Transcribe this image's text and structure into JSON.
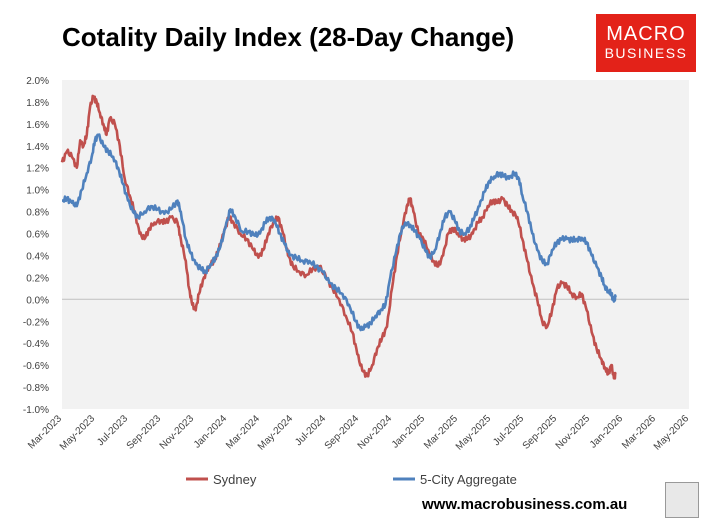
{
  "title": "Cotality Daily Index (28-Day Change)",
  "logo": {
    "line1": "MACRO",
    "line2": "BUSINESS",
    "color": "#e32219"
  },
  "footer": "www.macrobusiness.com.au",
  "colors": {
    "sydney": "#c0504d",
    "aggregate": "#4f81bd",
    "plot_bg": "#f2f2f2"
  },
  "chart_data": {
    "type": "line",
    "title": "Cotality Daily Index (28-Day Change)",
    "x_labels": [
      "Mar-2023",
      "May-2023",
      "Jul-2023",
      "Sep-2023",
      "Nov-2023",
      "Jan-2024",
      "Mar-2024",
      "May-2024",
      "Jul-2024",
      "Sep-2024",
      "Nov-2024",
      "Jan-2025",
      "Mar-2025",
      "May-2025",
      "Jul-2025",
      "Sep-2025",
      "Nov-2025",
      "Jan-2026",
      "Mar-2026",
      "May-2026"
    ],
    "y_ticks": [
      "2.0%",
      "1.8%",
      "1.6%",
      "1.4%",
      "1.2%",
      "1.0%",
      "0.8%",
      "0.6%",
      "0.4%",
      "0.2%",
      "0.0%",
      "-0.2%",
      "-0.4%",
      "-0.6%",
      "-0.8%",
      "-1.0%"
    ],
    "ylim": [
      -1.0,
      2.0
    ],
    "x_unit": "months since Mar-2023",
    "legend_position": "bottom",
    "series": [
      {
        "name": "Sydney",
        "values": [
          [
            0,
            1.25
          ],
          [
            0.3,
            1.35
          ],
          [
            0.6,
            1.3
          ],
          [
            0.9,
            1.2
          ],
          [
            1.1,
            1.45
          ],
          [
            1.3,
            1.4
          ],
          [
            1.5,
            1.5
          ],
          [
            1.7,
            1.75
          ],
          [
            1.9,
            1.85
          ],
          [
            2.1,
            1.8
          ],
          [
            2.3,
            1.7
          ],
          [
            2.5,
            1.6
          ],
          [
            2.7,
            1.5
          ],
          [
            2.9,
            1.65
          ],
          [
            3.2,
            1.6
          ],
          [
            3.5,
            1.4
          ],
          [
            3.8,
            1.1
          ],
          [
            4.1,
            0.95
          ],
          [
            4.4,
            0.8
          ],
          [
            4.7,
            0.6
          ],
          [
            5.0,
            0.55
          ],
          [
            5.3,
            0.65
          ],
          [
            5.6,
            0.7
          ],
          [
            6.0,
            0.72
          ],
          [
            6.3,
            0.7
          ],
          [
            6.6,
            0.75
          ],
          [
            7.0,
            0.7
          ],
          [
            7.2,
            0.55
          ],
          [
            7.5,
            0.35
          ],
          [
            7.7,
            0.1
          ],
          [
            7.9,
            -0.05
          ],
          [
            8.1,
            -0.1
          ],
          [
            8.3,
            0.05
          ],
          [
            8.6,
            0.2
          ],
          [
            8.9,
            0.3
          ],
          [
            9.2,
            0.35
          ],
          [
            9.5,
            0.45
          ],
          [
            9.8,
            0.6
          ],
          [
            10.1,
            0.75
          ],
          [
            10.4,
            0.7
          ],
          [
            10.8,
            0.6
          ],
          [
            11.2,
            0.55
          ],
          [
            11.6,
            0.45
          ],
          [
            11.9,
            0.38
          ],
          [
            12.2,
            0.45
          ],
          [
            12.5,
            0.6
          ],
          [
            12.8,
            0.7
          ],
          [
            13.1,
            0.75
          ],
          [
            13.4,
            0.6
          ],
          [
            13.7,
            0.4
          ],
          [
            14.0,
            0.3
          ],
          [
            14.4,
            0.25
          ],
          [
            14.8,
            0.22
          ],
          [
            15.2,
            0.28
          ],
          [
            15.6,
            0.3
          ],
          [
            16.0,
            0.2
          ],
          [
            16.4,
            0.1
          ],
          [
            16.8,
            0.0
          ],
          [
            17.2,
            -0.15
          ],
          [
            17.6,
            -0.3
          ],
          [
            17.9,
            -0.5
          ],
          [
            18.2,
            -0.65
          ],
          [
            18.5,
            -0.7
          ],
          [
            18.8,
            -0.6
          ],
          [
            19.1,
            -0.45
          ],
          [
            19.4,
            -0.35
          ],
          [
            19.7,
            -0.25
          ],
          [
            20.0,
            0.1
          ],
          [
            20.3,
            0.4
          ],
          [
            20.6,
            0.65
          ],
          [
            20.9,
            0.85
          ],
          [
            21.1,
            0.92
          ],
          [
            21.3,
            0.8
          ],
          [
            21.6,
            0.6
          ],
          [
            21.9,
            0.55
          ],
          [
            22.2,
            0.45
          ],
          [
            22.5,
            0.35
          ],
          [
            22.8,
            0.3
          ],
          [
            23.1,
            0.4
          ],
          [
            23.4,
            0.6
          ],
          [
            23.7,
            0.65
          ],
          [
            24.0,
            0.6
          ],
          [
            24.3,
            0.55
          ],
          [
            24.6,
            0.55
          ],
          [
            24.9,
            0.6
          ],
          [
            25.2,
            0.7
          ],
          [
            25.5,
            0.75
          ],
          [
            25.8,
            0.85
          ],
          [
            26.1,
            0.9
          ],
          [
            26.4,
            0.88
          ],
          [
            26.7,
            0.92
          ],
          [
            27.0,
            0.85
          ],
          [
            27.3,
            0.8
          ],
          [
            27.6,
            0.75
          ],
          [
            27.9,
            0.55
          ],
          [
            28.2,
            0.35
          ],
          [
            28.5,
            0.15
          ],
          [
            28.8,
            0.0
          ],
          [
            29.1,
            -0.2
          ],
          [
            29.4,
            -0.25
          ],
          [
            29.7,
            -0.1
          ],
          [
            30.0,
            0.1
          ],
          [
            30.3,
            0.15
          ],
          [
            30.6,
            0.12
          ],
          [
            30.9,
            0.05
          ],
          [
            31.2,
            0.02
          ],
          [
            31.5,
            0.05
          ],
          [
            31.8,
            -0.1
          ],
          [
            32.1,
            -0.3
          ],
          [
            32.4,
            -0.45
          ],
          [
            32.7,
            -0.55
          ],
          [
            32.9,
            -0.62
          ],
          [
            33.1,
            -0.68
          ],
          [
            33.3,
            -0.6
          ],
          [
            33.45,
            -0.72
          ],
          [
            33.55,
            -0.68
          ]
        ]
      },
      {
        "name": "5-City Aggregate",
        "values": [
          [
            0,
            0.9
          ],
          [
            0.3,
            0.92
          ],
          [
            0.6,
            0.88
          ],
          [
            0.9,
            0.85
          ],
          [
            1.2,
            1.0
          ],
          [
            1.5,
            1.15
          ],
          [
            1.8,
            1.3
          ],
          [
            2.0,
            1.45
          ],
          [
            2.2,
            1.5
          ],
          [
            2.5,
            1.4
          ],
          [
            2.8,
            1.35
          ],
          [
            3.1,
            1.3
          ],
          [
            3.4,
            1.2
          ],
          [
            3.7,
            1.05
          ],
          [
            4.0,
            0.9
          ],
          [
            4.3,
            0.8
          ],
          [
            4.6,
            0.75
          ],
          [
            5.0,
            0.8
          ],
          [
            5.4,
            0.85
          ],
          [
            5.8,
            0.82
          ],
          [
            6.2,
            0.78
          ],
          [
            6.6,
            0.82
          ],
          [
            7.0,
            0.9
          ],
          [
            7.2,
            0.8
          ],
          [
            7.5,
            0.55
          ],
          [
            7.8,
            0.42
          ],
          [
            8.1,
            0.32
          ],
          [
            8.4,
            0.28
          ],
          [
            8.7,
            0.25
          ],
          [
            9.0,
            0.32
          ],
          [
            9.3,
            0.38
          ],
          [
            9.6,
            0.48
          ],
          [
            9.9,
            0.65
          ],
          [
            10.2,
            0.82
          ],
          [
            10.5,
            0.75
          ],
          [
            10.9,
            0.62
          ],
          [
            11.3,
            0.62
          ],
          [
            11.7,
            0.58
          ],
          [
            12.0,
            0.6
          ],
          [
            12.3,
            0.7
          ],
          [
            12.6,
            0.75
          ],
          [
            12.9,
            0.72
          ],
          [
            13.2,
            0.6
          ],
          [
            13.5,
            0.5
          ],
          [
            13.8,
            0.4
          ],
          [
            14.2,
            0.38
          ],
          [
            14.6,
            0.35
          ],
          [
            15.0,
            0.35
          ],
          [
            15.4,
            0.3
          ],
          [
            15.8,
            0.25
          ],
          [
            16.2,
            0.15
          ],
          [
            16.6,
            0.1
          ],
          [
            17.0,
            0.05
          ],
          [
            17.4,
            -0.05
          ],
          [
            17.8,
            -0.2
          ],
          [
            18.1,
            -0.28
          ],
          [
            18.4,
            -0.25
          ],
          [
            18.7,
            -0.22
          ],
          [
            19.0,
            -0.15
          ],
          [
            19.3,
            -0.1
          ],
          [
            19.6,
            -0.05
          ],
          [
            19.9,
            0.2
          ],
          [
            20.2,
            0.4
          ],
          [
            20.5,
            0.6
          ],
          [
            20.8,
            0.7
          ],
          [
            21.1,
            0.68
          ],
          [
            21.4,
            0.62
          ],
          [
            21.7,
            0.55
          ],
          [
            22.0,
            0.45
          ],
          [
            22.3,
            0.38
          ],
          [
            22.6,
            0.45
          ],
          [
            22.9,
            0.6
          ],
          [
            23.2,
            0.75
          ],
          [
            23.5,
            0.8
          ],
          [
            23.8,
            0.72
          ],
          [
            24.1,
            0.62
          ],
          [
            24.4,
            0.6
          ],
          [
            24.7,
            0.65
          ],
          [
            25.0,
            0.75
          ],
          [
            25.3,
            0.85
          ],
          [
            25.6,
            0.98
          ],
          [
            25.9,
            1.08
          ],
          [
            26.2,
            1.12
          ],
          [
            26.5,
            1.15
          ],
          [
            26.8,
            1.12
          ],
          [
            27.1,
            1.1
          ],
          [
            27.4,
            1.15
          ],
          [
            27.7,
            1.1
          ],
          [
            27.9,
            0.95
          ],
          [
            28.2,
            0.8
          ],
          [
            28.5,
            0.6
          ],
          [
            28.8,
            0.45
          ],
          [
            29.1,
            0.35
          ],
          [
            29.4,
            0.32
          ],
          [
            29.7,
            0.45
          ],
          [
            30.0,
            0.52
          ],
          [
            30.3,
            0.55
          ],
          [
            30.6,
            0.55
          ],
          [
            30.9,
            0.54
          ],
          [
            31.2,
            0.55
          ],
          [
            31.5,
            0.56
          ],
          [
            31.8,
            0.52
          ],
          [
            32.1,
            0.4
          ],
          [
            32.4,
            0.3
          ],
          [
            32.7,
            0.2
          ],
          [
            32.9,
            0.12
          ],
          [
            33.1,
            0.08
          ],
          [
            33.3,
            0.05
          ],
          [
            33.45,
            -0.02
          ],
          [
            33.55,
            0.02
          ]
        ]
      }
    ]
  }
}
